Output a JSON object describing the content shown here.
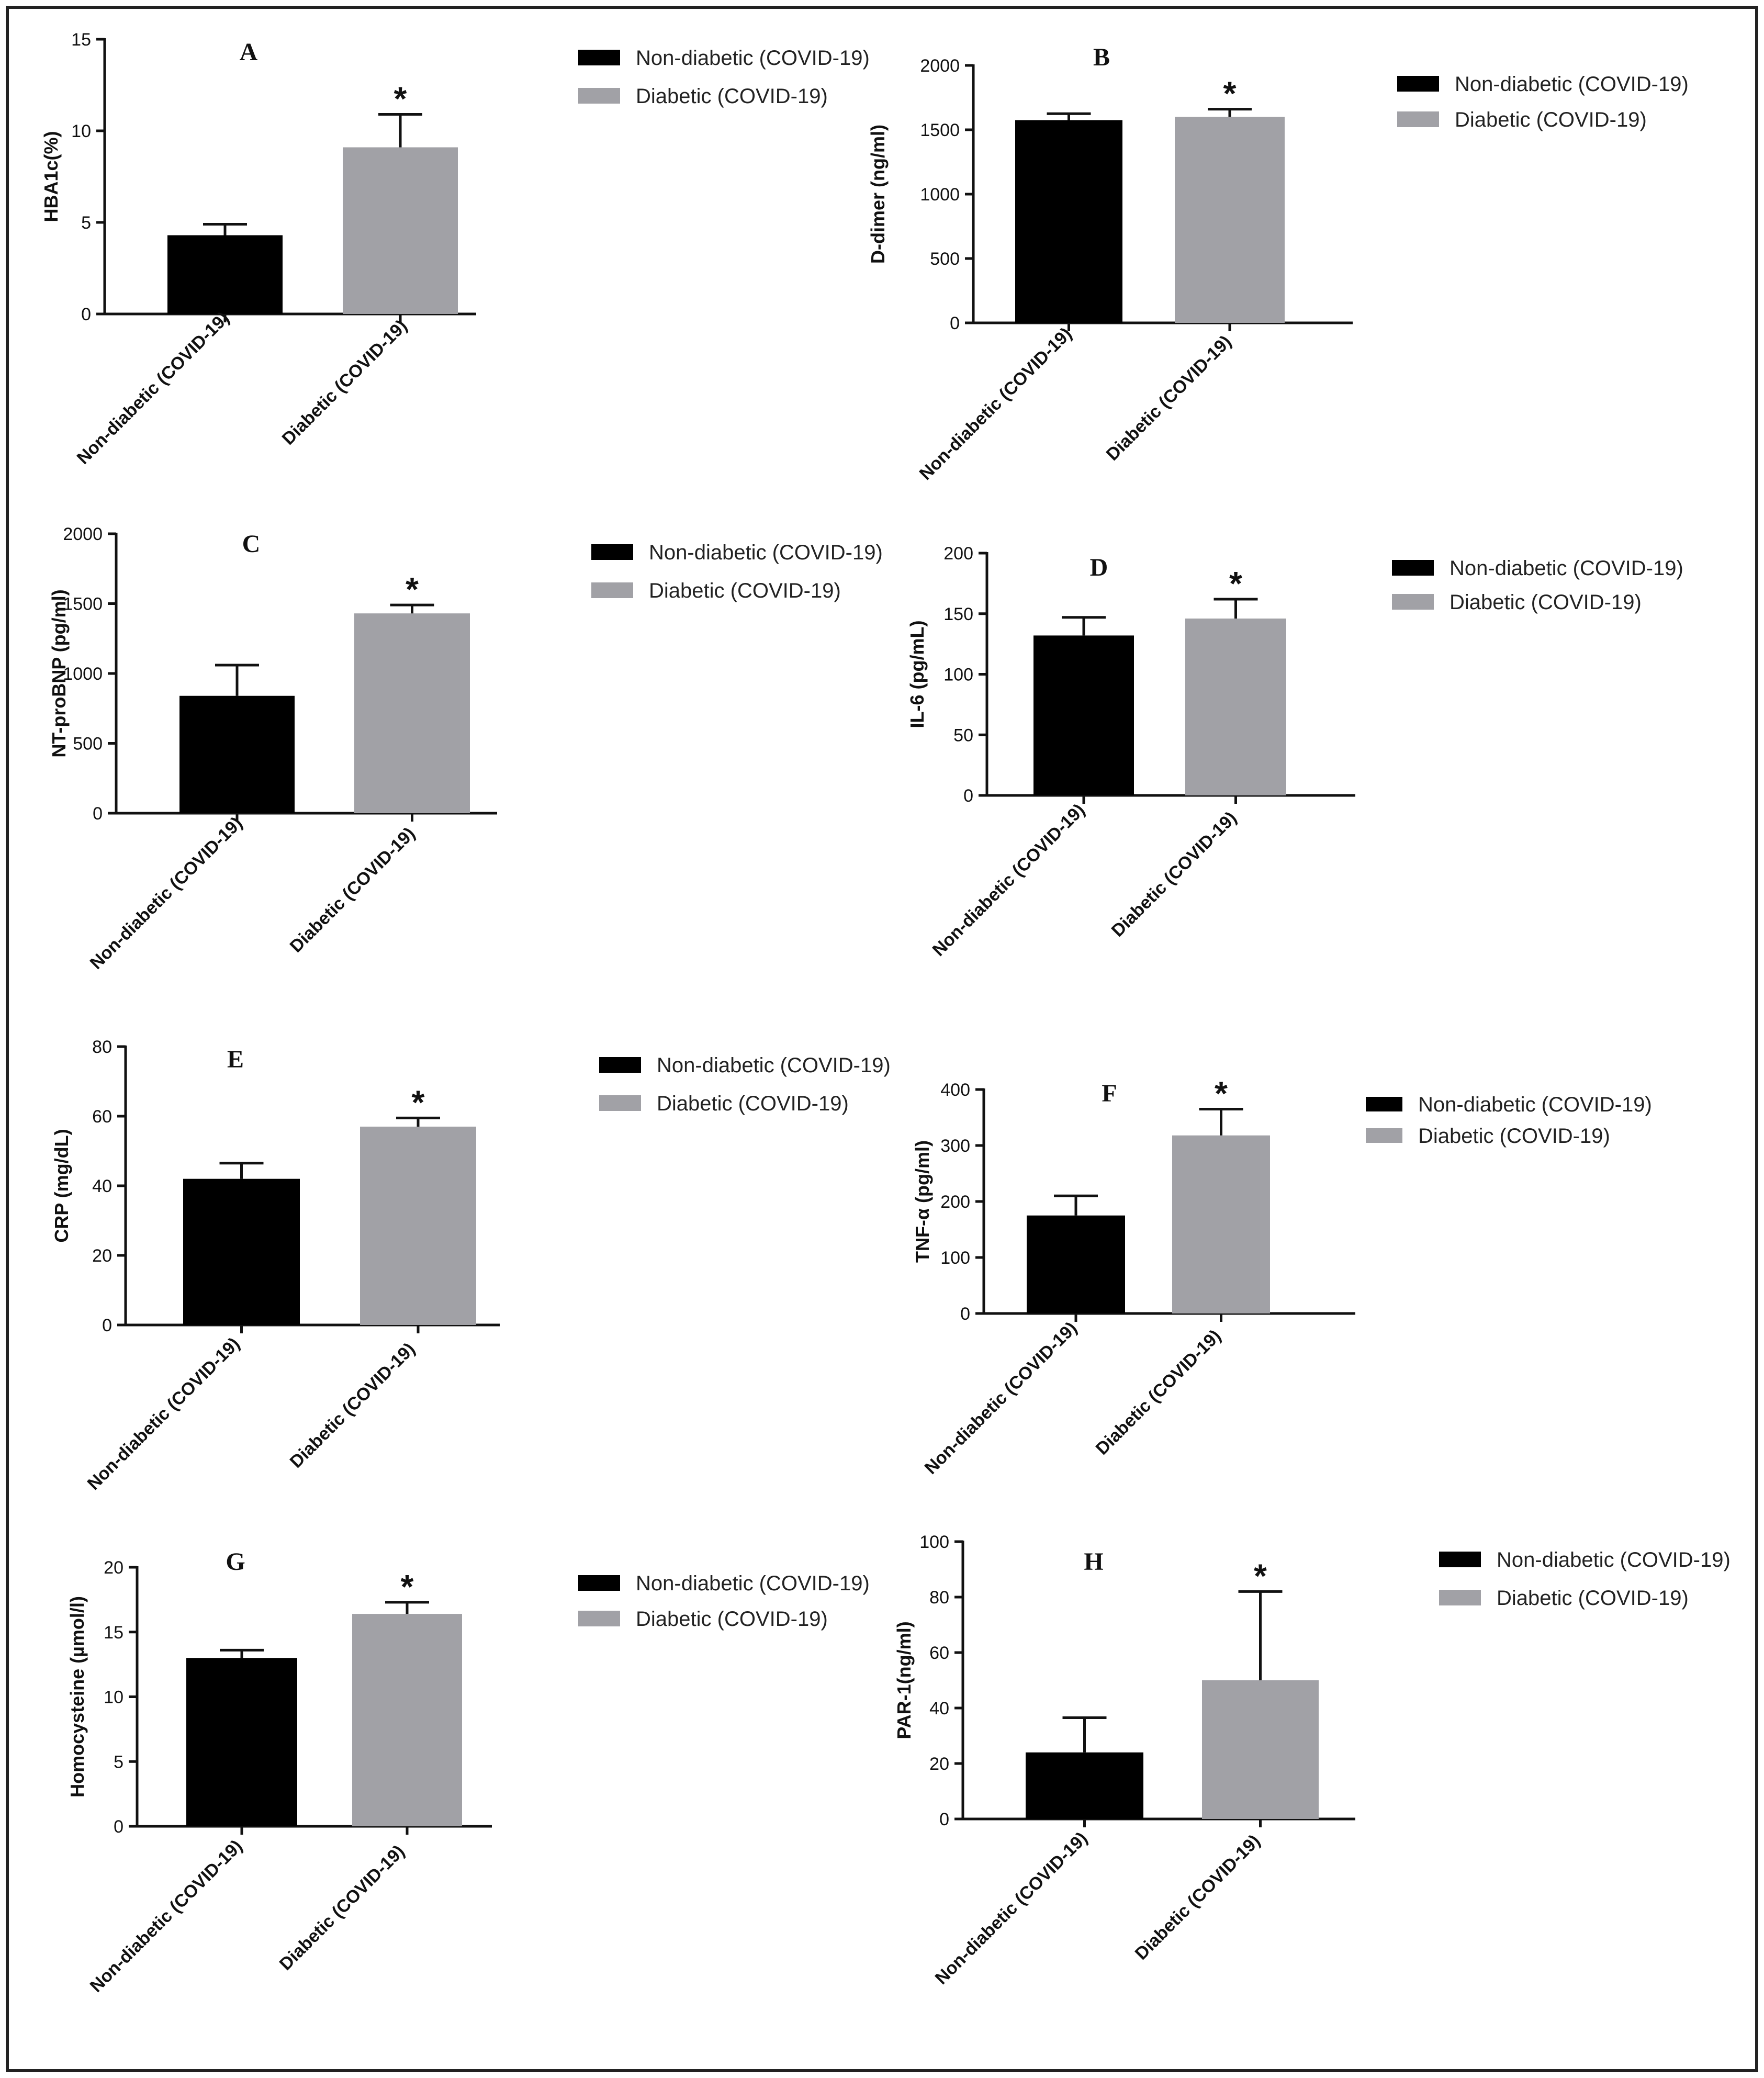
{
  "colors": {
    "non_diabetic": "#000000",
    "diabetic": "#a1a1a6"
  },
  "legend_labels": [
    "Non-diabetic (COVID-19)",
    "Diabetic (COVID-19)"
  ],
  "significance_marker": "*",
  "chart_data": [
    {
      "id": "A",
      "type": "bar",
      "letter": "A",
      "ylabel": "HBA1c(%)",
      "ylim": [
        0,
        15
      ],
      "yticks": [
        0,
        5,
        10,
        15
      ],
      "categories": [
        "Non-diabetic (COVID-19)",
        "Diabetic (COVID-19)"
      ],
      "values": [
        4.3,
        9.1
      ],
      "errors": [
        0.6,
        1.8
      ],
      "significant": [
        false,
        true
      ]
    },
    {
      "id": "B",
      "type": "bar",
      "letter": "B",
      "ylabel": "D-dimer (ng/ml)",
      "ylim": [
        0,
        2000
      ],
      "yticks": [
        0,
        500,
        1000,
        1500,
        2000
      ],
      "categories": [
        "Non-diabetic (COVID-19)",
        "Diabetic (COVID-19)"
      ],
      "values": [
        1575,
        1600
      ],
      "errors": [
        50,
        60
      ],
      "significant": [
        false,
        true
      ]
    },
    {
      "id": "C",
      "type": "bar",
      "letter": "C",
      "ylabel": "NT-proBNP (pg/ml)",
      "ylim": [
        0,
        2000
      ],
      "yticks": [
        0,
        500,
        1000,
        1500,
        2000
      ],
      "categories": [
        "Non-diabetic (COVID-19)",
        "Diabetic (COVID-19)"
      ],
      "values": [
        840,
        1430
      ],
      "errors": [
        220,
        60
      ],
      "significant": [
        false,
        true
      ]
    },
    {
      "id": "D",
      "type": "bar",
      "letter": "D",
      "ylabel": "IL-6 (pg/mL)",
      "ylim": [
        0,
        200
      ],
      "yticks": [
        0,
        50,
        100,
        150,
        200
      ],
      "categories": [
        "Non-diabetic (COVID-19)",
        "Diabetic (COVID-19)"
      ],
      "values": [
        132,
        146
      ],
      "errors": [
        15,
        16
      ],
      "significant": [
        false,
        true
      ]
    },
    {
      "id": "E",
      "type": "bar",
      "letter": "E",
      "ylabel": "CRP (mg/dL)",
      "ylim": [
        0,
        80
      ],
      "yticks": [
        0,
        20,
        40,
        60,
        80
      ],
      "categories": [
        "Non-diabetic (COVID-19)",
        "Diabetic (COVID-19)"
      ],
      "values": [
        42,
        57
      ],
      "errors": [
        4.5,
        2.5
      ],
      "significant": [
        false,
        true
      ]
    },
    {
      "id": "F",
      "type": "bar",
      "letter": "F",
      "ylabel": "TNF-α (pg/ml)",
      "ylim": [
        0,
        400
      ],
      "yticks": [
        0,
        100,
        200,
        300,
        400
      ],
      "categories": [
        "Non-diabetic (COVID-19)",
        "Diabetic (COVID-19)"
      ],
      "values": [
        175,
        318
      ],
      "errors": [
        35,
        47
      ],
      "significant": [
        false,
        true
      ]
    },
    {
      "id": "G",
      "type": "bar",
      "letter": "G",
      "ylabel": "Homocysteine (µmol/l)",
      "ylim": [
        0,
        20
      ],
      "yticks": [
        0,
        5,
        10,
        15,
        20
      ],
      "categories": [
        "Non-diabetic (COVID-19)",
        "Diabetic (COVID-19)"
      ],
      "values": [
        13,
        16.4
      ],
      "errors": [
        0.6,
        0.9
      ],
      "significant": [
        false,
        true
      ]
    },
    {
      "id": "H",
      "type": "bar",
      "letter": "H",
      "ylabel": "PAR-1(ng/ml)",
      "ylim": [
        0,
        100
      ],
      "yticks": [
        0,
        20,
        40,
        60,
        80,
        100
      ],
      "categories": [
        "Non-diabetic (COVID-19)",
        "Diabetic (COVID-19)"
      ],
      "values": [
        24,
        50
      ],
      "errors": [
        12.5,
        32
      ],
      "significant": [
        false,
        true
      ]
    }
  ]
}
